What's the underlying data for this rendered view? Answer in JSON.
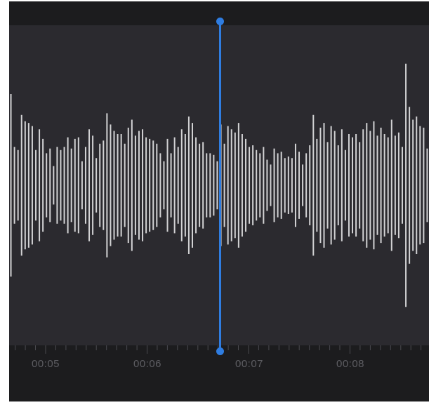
{
  "colors": {
    "panel_background": "#2b2a2f",
    "strip_background": "#1c1c1e",
    "waveform": "#d2d2d4",
    "playhead": "#2f7de1",
    "time_label": "#5d5d62"
  },
  "timeline": {
    "labels": [
      "00:05",
      "00:06",
      "00:07",
      "00:08"
    ]
  },
  "playhead": {
    "icon": "playhead-line",
    "position_seconds": 6.68
  },
  "waveform": {
    "amplitudes": [
      0.57,
      0.24,
      0.22,
      0.44,
      0.4,
      0.39,
      0.37,
      0.22,
      0.35,
      0.29,
      0.2,
      0.23,
      0.12,
      0.24,
      0.22,
      0.24,
      0.3,
      0.23,
      0.29,
      0.3,
      0.15,
      0.24,
      0.35,
      0.31,
      0.17,
      0.26,
      0.28,
      0.45,
      0.38,
      0.34,
      0.32,
      0.32,
      0.26,
      0.36,
      0.41,
      0.31,
      0.34,
      0.35,
      0.3,
      0.29,
      0.28,
      0.26,
      0.2,
      0.15,
      0.29,
      0.2,
      0.3,
      0.24,
      0.35,
      0.32,
      0.43,
      0.39,
      0.3,
      0.26,
      0.27,
      0.2,
      0.2,
      0.19,
      0.15,
      0.38,
      0.26,
      0.37,
      0.35,
      0.33,
      0.39,
      0.32,
      0.29,
      0.24,
      0.25,
      0.22,
      0.2,
      0.24,
      0.16,
      0.13,
      0.23,
      0.2,
      0.21,
      0.17,
      0.18,
      0.17,
      0.26,
      0.21,
      0.13,
      0.2,
      0.25,
      0.44,
      0.29,
      0.36,
      0.39,
      0.27,
      0.37,
      0.34,
      0.25,
      0.35,
      0.22,
      0.32,
      0.3,
      0.32,
      0.27,
      0.35,
      0.39,
      0.34,
      0.4,
      0.31,
      0.36,
      0.32,
      0.3,
      0.41,
      0.31,
      0.33,
      0.24,
      0.76,
      0.49,
      0.41,
      0.43,
      0.37,
      0.36,
      0.23
    ]
  }
}
